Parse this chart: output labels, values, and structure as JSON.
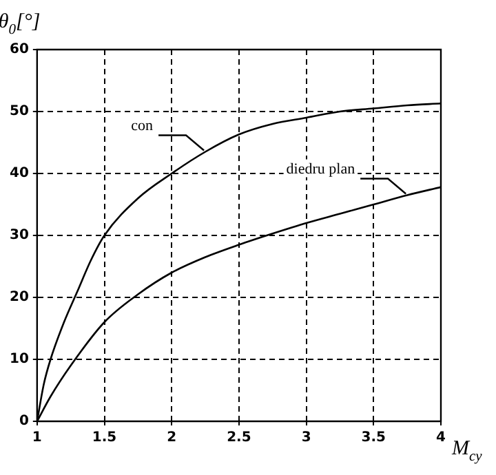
{
  "chart_data": {
    "type": "line",
    "xlabel": "M$_{cy}$",
    "ylabel": "θ$_{0}$[°]",
    "xlim": [
      1,
      4
    ],
    "xticks": [
      1,
      1.5,
      2,
      2.5,
      3,
      3.5,
      4
    ],
    "ylim": [
      0,
      60
    ],
    "yticks": [
      0,
      10,
      20,
      30,
      40,
      50,
      60
    ],
    "grid": true,
    "legend": false,
    "marker": "none",
    "line_style": "solid",
    "series": [
      {
        "name": "con",
        "color": "#000000",
        "x": [
          1,
          1.05,
          1.1,
          1.2,
          1.3,
          1.4,
          1.5,
          1.75,
          2,
          2.25,
          2.5,
          2.75,
          3,
          3.25,
          3.5,
          3.75,
          4
        ],
        "values": [
          0,
          6,
          10,
          16,
          21,
          26,
          30,
          36,
          40,
          43.5,
          46.3,
          48,
          49,
          50,
          50.5,
          51,
          51.3
        ]
      },
      {
        "name": "diedru plan",
        "color": "#000000",
        "x": [
          1,
          1.1,
          1.25,
          1.5,
          1.75,
          2,
          2.25,
          2.5,
          2.75,
          3,
          3.25,
          3.5,
          3.75,
          4
        ],
        "values": [
          0,
          4,
          9,
          16,
          20.5,
          24,
          26.5,
          28.5,
          30.3,
          32,
          33.5,
          35,
          36.5,
          37.8
        ]
      }
    ]
  }
}
